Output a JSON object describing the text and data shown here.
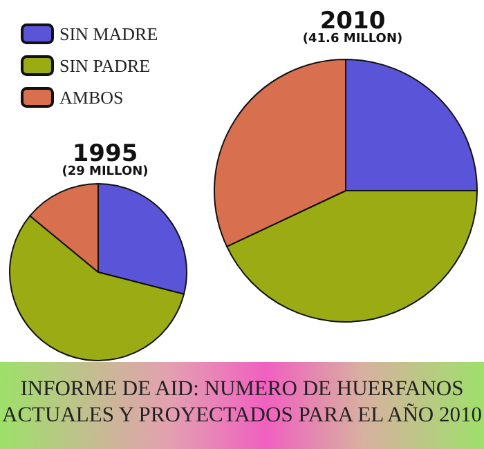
{
  "chart_data": {
    "type": "pie",
    "title": "INFORME DE AID: NUMERO DE HUERFANOS ACTUALES Y PROYECTADOS PARA EL AÑO 2010",
    "categories": [
      "SIN MADRE",
      "SIN PADRE",
      "AMBOS"
    ],
    "colors": [
      "#5a55d8",
      "#9aab14",
      "#d87050"
    ],
    "legend": "top left",
    "series": [
      {
        "name": "1995",
        "values": [
          29,
          57,
          14
        ]
      },
      {
        "name": "2010",
        "values": [
          25,
          43,
          32
        ]
      }
    ],
    "annotations": [
      "(29 MILLON)",
      "(41.6 MILLON)"
    ]
  }
}
